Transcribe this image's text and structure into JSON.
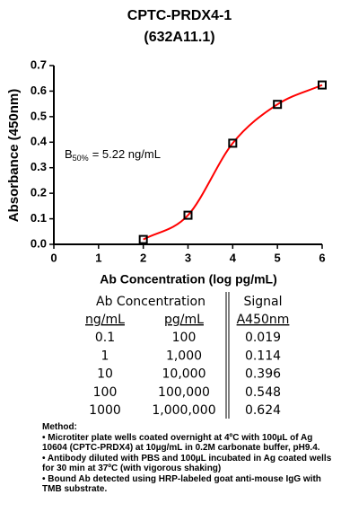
{
  "chart_data": {
    "type": "scatter",
    "title": "CPTC-PRDX4-1",
    "subtitle": "(632A11.1)",
    "x_label": "Ab Concentration (log pg/mL)",
    "y_label": "Absorbance (450nm)",
    "annotation": [
      "B",
      "50%",
      "= 5.22 ng/mL"
    ],
    "series": [
      {
        "x": [
          2,
          3,
          4,
          5,
          6
        ],
        "values": [
          0.019,
          0.114,
          0.396,
          0.548,
          0.624
        ],
        "color": "#000000",
        "line_color": "#ff0000"
      }
    ],
    "xlim": [
      0,
      6
    ],
    "xticks": [
      0,
      1,
      2,
      3,
      4,
      5,
      6
    ],
    "ylim": [
      0,
      0.7
    ],
    "yticks": [
      {
        "value": 0,
        "label": "0.0"
      },
      0.1,
      0.2,
      0.3,
      0.4,
      0.5,
      0.6,
      0.7
    ],
    "grid": false
  },
  "table": {
    "header_groups": [
      "Ab Concentration",
      "Signal"
    ],
    "columns": [
      "ng/mL",
      "pg/mL",
      "A450nm"
    ],
    "rows": [
      [
        "0.1",
        "100",
        "0.019"
      ],
      [
        "1",
        "1,000",
        "0.114"
      ],
      [
        "10",
        "10,000",
        "0.396"
      ],
      [
        "100",
        "100,000",
        "0.548"
      ],
      [
        "1000",
        "1,000,000",
        "0.624"
      ]
    ]
  },
  "method": {
    "title": "Method:",
    "items": [
      "• Microtiter plate wells coated overnight at 4ºC  with 100µL of Ag 10604 (CPTC-PRDX4) at 10µg/mL in 0.2M carbonate buffer, pH9.4.",
      "• Antibody diluted with PBS and 100µL incubated in Ag coated wells for 30 min at 37ºC (with vigorous shaking)",
      "• Bound Ab detected using HRP-labeled goat anti-mouse IgG with TMB substrate."
    ]
  }
}
